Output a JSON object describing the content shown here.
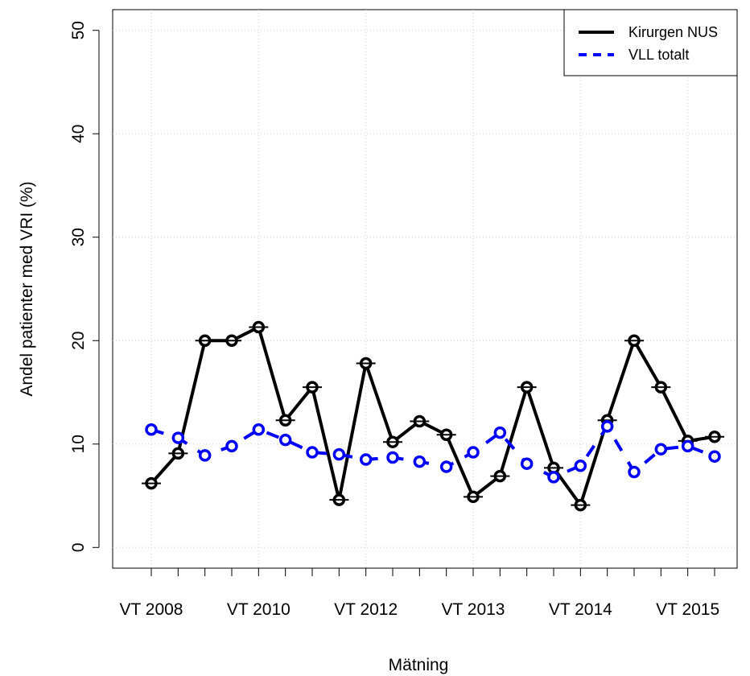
{
  "chart_data": {
    "type": "line",
    "x_label": "Mätning",
    "y_label": "Andel patienter med VRI (%)",
    "categories": [
      "VT 2008",
      null,
      null,
      null,
      "VT 2010",
      null,
      null,
      null,
      "VT 2012",
      null,
      null,
      null,
      "VT 2013",
      null,
      null,
      null,
      "VT 2014",
      null,
      null,
      null,
      "VT 2015",
      null
    ],
    "series": [
      {
        "name": "Kirurgen NUS",
        "color": "#000000",
        "dash": false,
        "values": [
          6.2,
          9.1,
          20.0,
          20.0,
          21.3,
          12.3,
          15.5,
          4.6,
          17.8,
          10.2,
          12.2,
          10.9,
          4.9,
          6.9,
          15.5,
          7.7,
          4.1,
          12.3,
          20.0,
          15.5,
          10.3,
          10.7
        ]
      },
      {
        "name": "VLL totalt",
        "color": "#0000ff",
        "dash": true,
        "values": [
          11.4,
          10.6,
          8.9,
          9.8,
          11.4,
          10.4,
          9.2,
          9.0,
          8.5,
          8.7,
          8.3,
          7.8,
          9.2,
          11.1,
          8.1,
          6.8,
          7.9,
          11.7,
          7.3,
          9.5,
          9.8,
          8.8
        ]
      }
    ],
    "ylim": [
      -2,
      52
    ],
    "yticks": [
      0,
      10,
      20,
      30,
      40,
      50
    ],
    "grid": true,
    "legend": "topright"
  }
}
